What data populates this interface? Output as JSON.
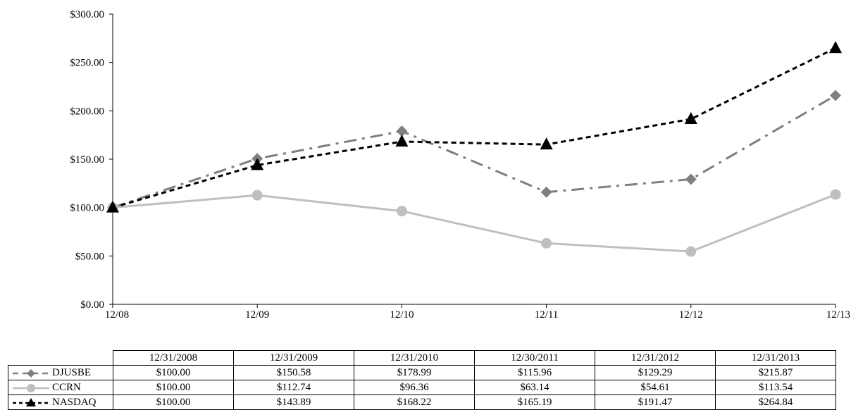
{
  "chart_data": {
    "type": "line",
    "x": [
      "12/08",
      "12/09",
      "12/10",
      "12/11",
      "12/12",
      "12/13"
    ],
    "table_headers": [
      "12/31/2008",
      "12/31/2009",
      "12/31/2010",
      "12/30/2011",
      "12/31/2012",
      "12/31/2013"
    ],
    "yticks": [
      "$0.00",
      "$50.00",
      "$100.00",
      "$150.00",
      "$200.00",
      "$250.00",
      "$300.00"
    ],
    "ylim": [
      0,
      300
    ],
    "grid": false,
    "series": [
      {
        "name": "DJUSBE",
        "values": [
          100.0,
          150.58,
          178.99,
          115.96,
          129.29,
          215.87
        ],
        "labels": [
          "$100.00",
          "$150.58",
          "$178.99",
          "$115.96",
          "$129.29",
          "$215.87"
        ],
        "color": "#7f7f7f",
        "marker": "diamond",
        "line_style": "dash-dot"
      },
      {
        "name": "CCRN",
        "values": [
          100.0,
          112.74,
          96.36,
          63.14,
          54.61,
          113.54
        ],
        "labels": [
          "$100.00",
          "$112.74",
          "$96.36",
          "$63.14",
          "$54.61",
          "$113.54"
        ],
        "color": "#bfbfbf",
        "marker": "circle",
        "line_style": "solid"
      },
      {
        "name": "NASDAQ",
        "values": [
          100.0,
          143.89,
          168.22,
          165.19,
          191.47,
          264.84
        ],
        "labels": [
          "$100.00",
          "$143.89",
          "$168.22",
          "$165.19",
          "$191.47",
          "$264.84"
        ],
        "color": "#000000",
        "marker": "triangle",
        "line_style": "dashed"
      }
    ]
  }
}
